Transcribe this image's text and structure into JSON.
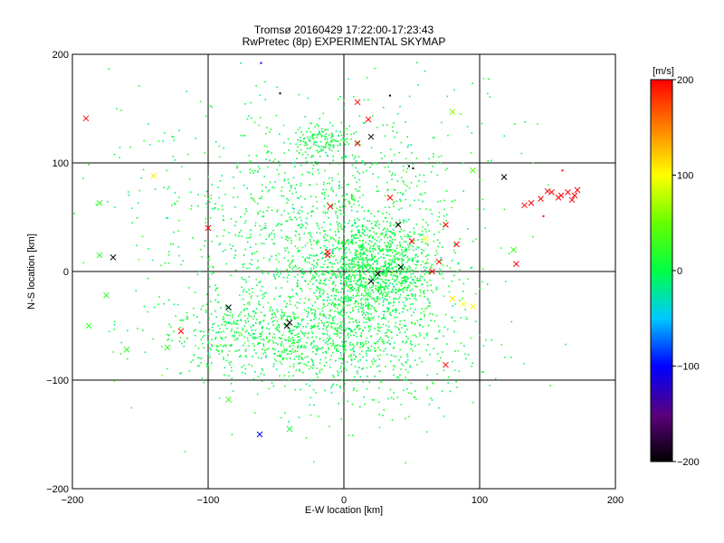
{
  "chart_data": {
    "type": "scatter",
    "title": "Tromsø 20160429 17:22:00-17:23:43",
    "subtitle": "RwPretec (8p) EXPERIMENTAL SKYMAP",
    "xlabel": "E-W location [km]",
    "ylabel": "N-S location [km]",
    "xlim": [
      -200,
      200
    ],
    "ylim": [
      -200,
      200
    ],
    "x_ticks": [
      -200,
      -100,
      0,
      100,
      200
    ],
    "y_ticks": [
      -200,
      -100,
      0,
      100,
      200
    ],
    "grid": true,
    "colorbar": {
      "unit_label": "[m/s]",
      "range": [
        -200,
        200
      ],
      "ticks": [
        -200,
        -100,
        0,
        100,
        200
      ],
      "colormap": "rainbow (black-purple-blue-cyan-green-yellow-red)"
    },
    "clusters_dot_note": "dense cloud of small dots, velocity near 0",
    "dot_clusters": [
      {
        "cx": 20,
        "cy": 0,
        "sx": 25,
        "sy": 25,
        "n": 1300,
        "vmean": 5
      },
      {
        "cx": -50,
        "cy": -60,
        "sx": 40,
        "sy": 18,
        "n": 700,
        "vmean": 5
      },
      {
        "cx": -20,
        "cy": 40,
        "sx": 45,
        "sy": 50,
        "n": 800,
        "vmean": 5
      },
      {
        "cx": -15,
        "cy": 120,
        "sx": 12,
        "sy": 8,
        "n": 150,
        "vmean": 5
      },
      {
        "cx": 20,
        "cy": -70,
        "sx": 40,
        "sy": 35,
        "n": 500,
        "vmean": 5
      },
      {
        "cx": -100,
        "cy": 40,
        "sx": 50,
        "sy": 70,
        "n": 220,
        "vmean": 5
      },
      {
        "cx": 60,
        "cy": 80,
        "sx": 35,
        "sy": 50,
        "n": 150,
        "vmean": 5
      }
    ],
    "cross_points": [
      {
        "x": -190,
        "y": 141,
        "v": 200
      },
      {
        "x": -140,
        "y": 88,
        "v": 110
      },
      {
        "x": -180,
        "y": 63,
        "v": 20
      },
      {
        "x": -100,
        "y": 40,
        "v": 200
      },
      {
        "x": -170,
        "y": 13,
        "v": -200
      },
      {
        "x": -180,
        "y": 15,
        "v": 20
      },
      {
        "x": -175,
        "y": -22,
        "v": 20
      },
      {
        "x": -188,
        "y": -50,
        "v": 20
      },
      {
        "x": -160,
        "y": -72,
        "v": 20
      },
      {
        "x": -130,
        "y": -70,
        "v": 20
      },
      {
        "x": -120,
        "y": -55,
        "v": 200
      },
      {
        "x": -85,
        "y": -33,
        "v": -200
      },
      {
        "x": -40,
        "y": -47,
        "v": -200
      },
      {
        "x": -42,
        "y": -50,
        "v": -200
      },
      {
        "x": -85,
        "y": -118,
        "v": 30
      },
      {
        "x": -62,
        "y": -150,
        "v": -100
      },
      {
        "x": -40,
        "y": -145,
        "v": 10
      },
      {
        "x": -10,
        "y": 60,
        "v": 200
      },
      {
        "x": -12,
        "y": 18,
        "v": 200
      },
      {
        "x": -12,
        "y": 15,
        "v": 200
      },
      {
        "x": 10,
        "y": 156,
        "v": 200
      },
      {
        "x": 18,
        "y": 140,
        "v": 200
      },
      {
        "x": 10,
        "y": 118,
        "v": 200
      },
      {
        "x": 20,
        "y": 124,
        "v": -200
      },
      {
        "x": 34,
        "y": 68,
        "v": 200
      },
      {
        "x": 40,
        "y": 43,
        "v": -200
      },
      {
        "x": 42,
        "y": 4,
        "v": -200
      },
      {
        "x": 25,
        "y": -2,
        "v": -200
      },
      {
        "x": 20,
        "y": -9,
        "v": -200
      },
      {
        "x": 50,
        "y": 28,
        "v": 200
      },
      {
        "x": 60,
        "y": 30,
        "v": 100
      },
      {
        "x": 75,
        "y": 43,
        "v": 200
      },
      {
        "x": 83,
        "y": 25,
        "v": 200
      },
      {
        "x": 65,
        "y": 0,
        "v": 200
      },
      {
        "x": 70,
        "y": 9,
        "v": 200
      },
      {
        "x": 75,
        "y": -86,
        "v": 200
      },
      {
        "x": 80,
        "y": 147,
        "v": 60
      },
      {
        "x": 95,
        "y": 93,
        "v": 40
      },
      {
        "x": 118,
        "y": 87,
        "v": -200
      },
      {
        "x": 125,
        "y": 20,
        "v": 30
      },
      {
        "x": 127,
        "y": 7,
        "v": 200
      },
      {
        "x": 88,
        "y": -30,
        "v": 100
      },
      {
        "x": 95,
        "y": -32,
        "v": 100
      },
      {
        "x": 80,
        "y": -25,
        "v": 110
      },
      {
        "x": 133,
        "y": 61,
        "v": 200
      },
      {
        "x": 138,
        "y": 63,
        "v": 200
      },
      {
        "x": 145,
        "y": 67,
        "v": 200
      },
      {
        "x": 150,
        "y": 74,
        "v": 200
      },
      {
        "x": 153,
        "y": 73,
        "v": 200
      },
      {
        "x": 158,
        "y": 68,
        "v": 200
      },
      {
        "x": 160,
        "y": 70,
        "v": 200
      },
      {
        "x": 165,
        "y": 73,
        "v": 200
      },
      {
        "x": 168,
        "y": 66,
        "v": 200
      },
      {
        "x": 172,
        "y": 75,
        "v": 200
      },
      {
        "x": 170,
        "y": 70,
        "v": 200
      }
    ],
    "small_dark_points": [
      {
        "x": -47,
        "y": 164,
        "v": -200
      },
      {
        "x": 34,
        "y": 162,
        "v": -200
      },
      {
        "x": 48,
        "y": 97,
        "v": -200
      },
      {
        "x": 51,
        "y": 95,
        "v": -200
      },
      {
        "x": 161,
        "y": 93,
        "v": 200
      },
      {
        "x": 147,
        "y": 51,
        "v": 200
      },
      {
        "x": -61,
        "y": 192,
        "v": -100
      }
    ]
  }
}
